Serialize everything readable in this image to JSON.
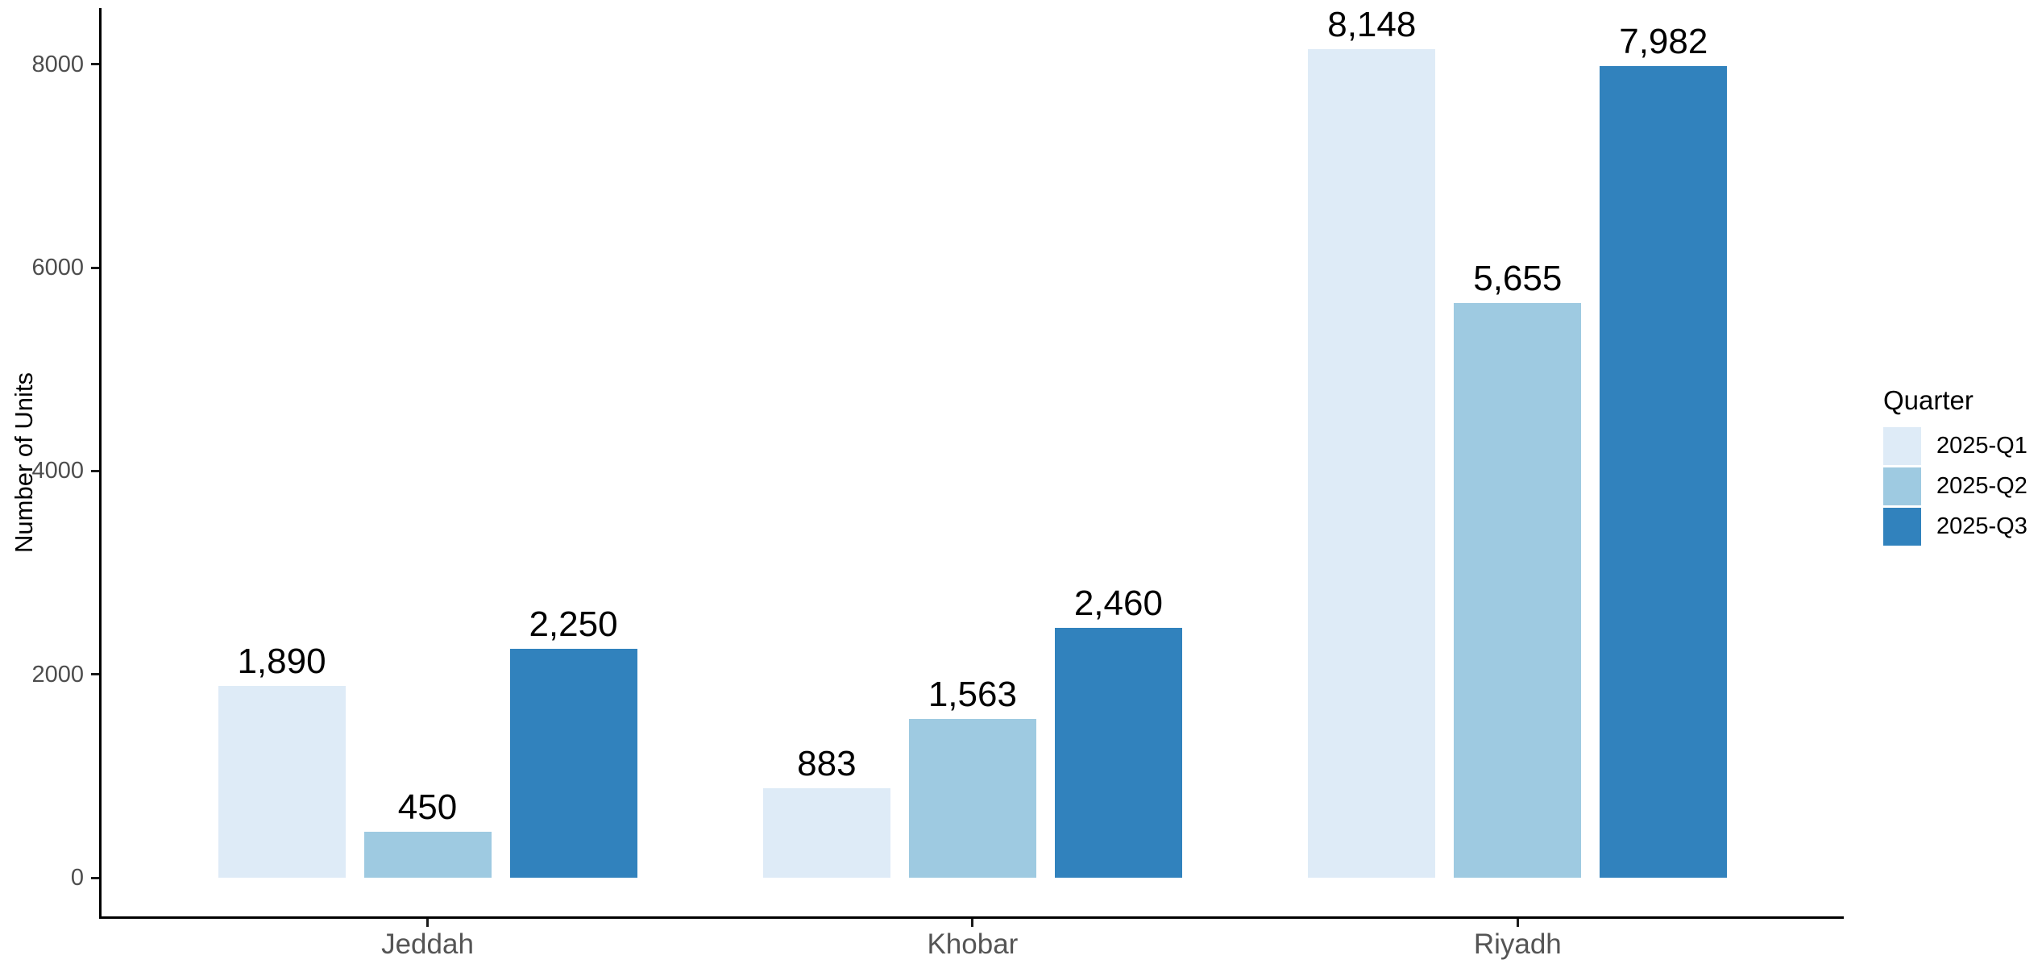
{
  "figure": {
    "background": "#ffffff",
    "title": ""
  },
  "chart_data": {
    "type": "bar",
    "grouping": "dodged",
    "title": "",
    "xlabel": "",
    "ylabel": "Number of Units",
    "categories": [
      "Jeddah",
      "Khobar",
      "Riyadh"
    ],
    "series": [
      {
        "name": "2025-Q1",
        "color": "#deebf7",
        "values": [
          1890,
          883,
          8148
        ],
        "labels": [
          "1,890",
          "883",
          "8,148"
        ]
      },
      {
        "name": "2025-Q2",
        "color": "#9ecae1",
        "values": [
          450,
          1563,
          5655
        ],
        "labels": [
          "450",
          "1,563",
          "5,655"
        ]
      },
      {
        "name": "2025-Q3",
        "color": "#3182bd",
        "values": [
          2250,
          2460,
          7982
        ],
        "labels": [
          "2,250",
          "2,460",
          "7,982"
        ]
      }
    ],
    "ylim": [
      0,
      8555
    ],
    "yticks": [
      {
        "value": 0,
        "label": "0"
      },
      {
        "value": 2000,
        "label": "2000"
      },
      {
        "value": 4000,
        "label": "4000"
      },
      {
        "value": 6000,
        "label": "6000"
      },
      {
        "value": 8000,
        "label": "8000"
      }
    ],
    "grid": false,
    "bar_value_labels_shown": true,
    "legend": {
      "title": "Quarter",
      "position": "right"
    }
  },
  "colors": {
    "axis_line": "#000000",
    "tick_text": "#4d4d4d",
    "category_text": "#555555",
    "axis_title_text": "#000000",
    "value_label_text": "#000000",
    "legend_text": "#000000"
  }
}
